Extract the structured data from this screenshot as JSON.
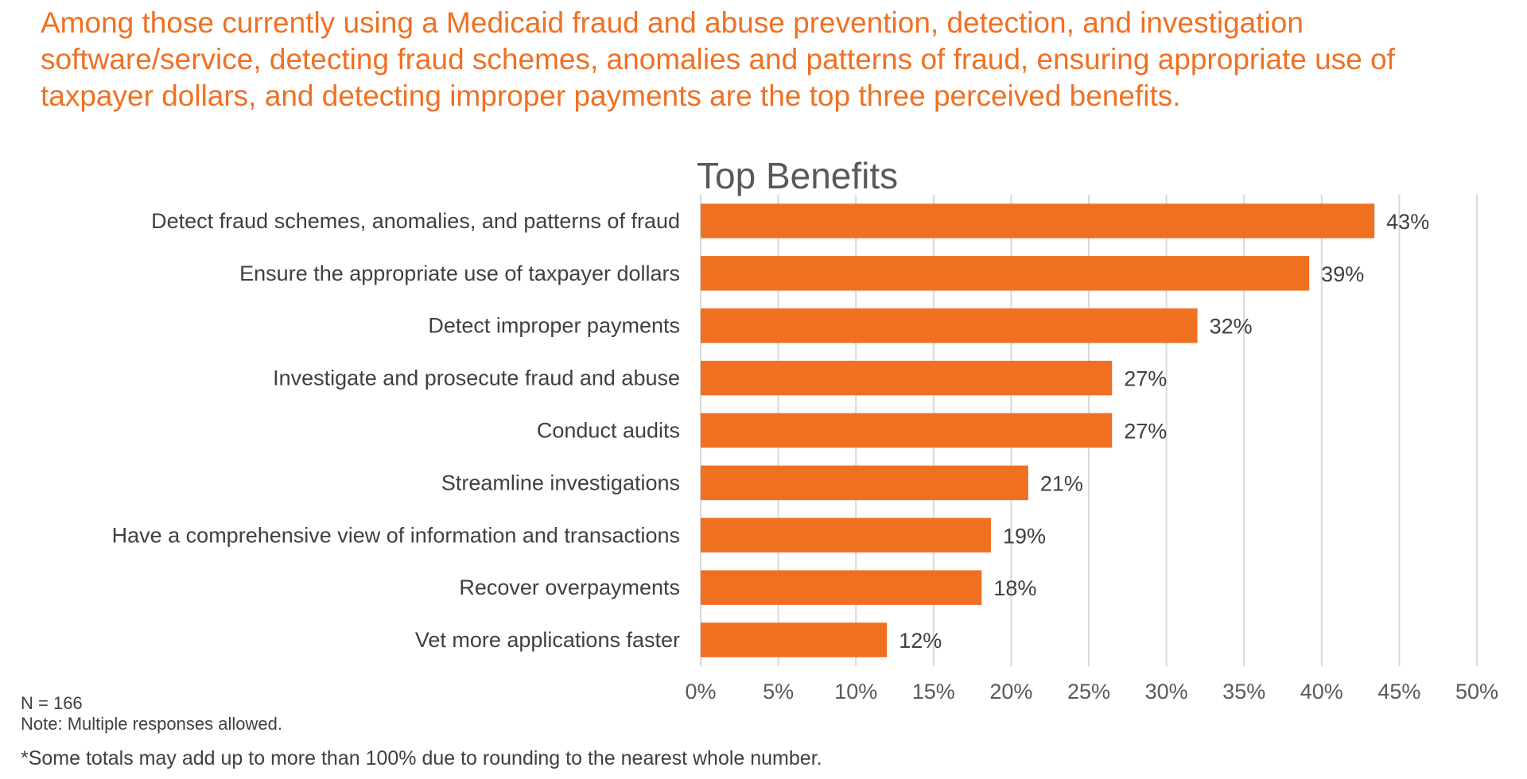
{
  "headline": "Among those currently using a Medicaid fraud and abuse prevention, detection, and investigation software/service, detecting fraud schemes, anomalies and patterns of fraud, ensuring appropriate use of taxpayer dollars, and detecting improper payments are the top three perceived benefits.",
  "colors": {
    "accent": "#f07022",
    "bar": "#f07022",
    "grid": "#d9d9d9",
    "text": "#404040"
  },
  "notes": {
    "n": "N = 166",
    "multiple": "Note: Multiple responses allowed."
  },
  "footnote": "*Some totals may add up to more than 100% due to rounding to the nearest whole number.",
  "chart_data": {
    "type": "bar",
    "orientation": "horizontal",
    "title": "Top Benefits",
    "categories": [
      "Detect fraud schemes, anomalies, and patterns of fraud",
      "Ensure the appropriate use of taxpayer dollars",
      "Detect improper payments",
      "Investigate and prosecute fraud and abuse",
      "Conduct audits",
      "Streamline investigations",
      "Have a comprehensive view of information and transactions",
      "Recover overpayments",
      "Vet more applications faster"
    ],
    "values": [
      43.4,
      39.2,
      32.0,
      26.5,
      26.5,
      21.1,
      18.7,
      18.1,
      12.0
    ],
    "value_labels": [
      "43%",
      "39%",
      "32%",
      "27%",
      "27%",
      "21%",
      "19%",
      "18%",
      "12%"
    ],
    "x_ticks": [
      0,
      5,
      10,
      15,
      20,
      25,
      30,
      35,
      40,
      45,
      50
    ],
    "x_tick_labels": [
      "0%",
      "5%",
      "10%",
      "15%",
      "20%",
      "25%",
      "30%",
      "35%",
      "40%",
      "45%",
      "50%"
    ],
    "xlim": [
      0,
      50
    ],
    "grid": true,
    "legend": "none"
  }
}
